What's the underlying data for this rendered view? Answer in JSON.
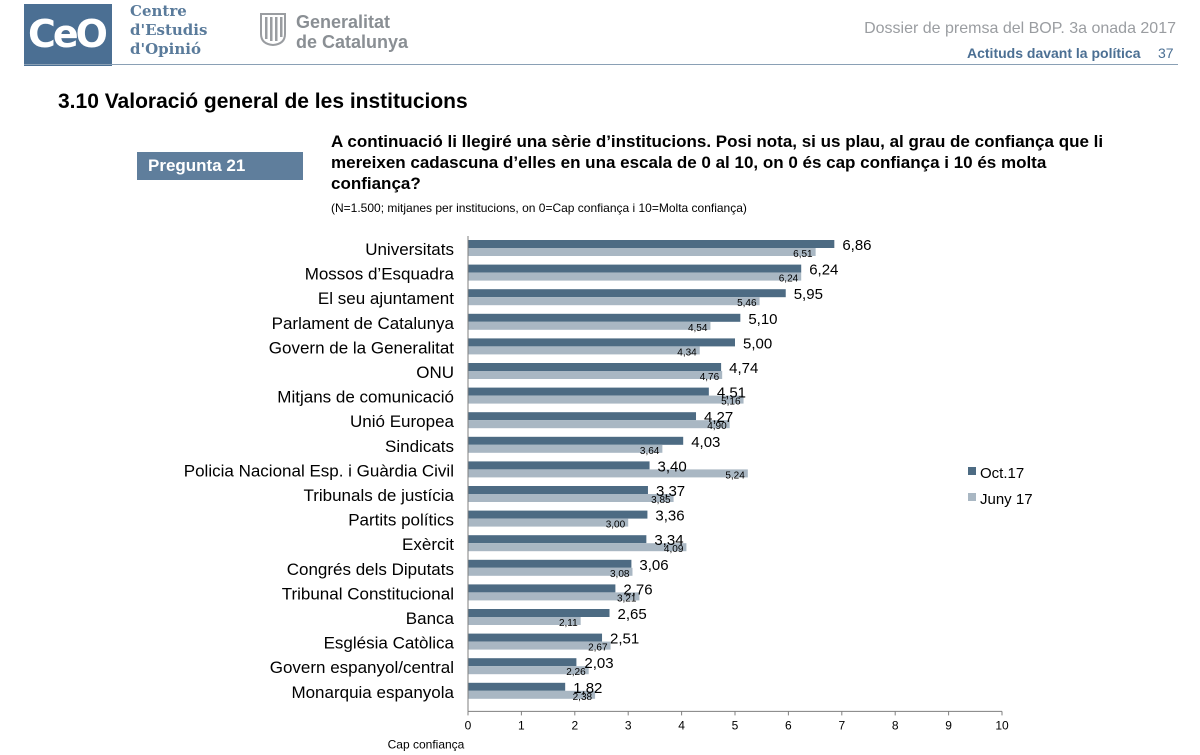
{
  "header": {
    "ceo_logo": "CeO",
    "ceo_name_lines": [
      "Centre",
      "d'Estudis",
      "d'Opinió"
    ],
    "gen_name_lines": [
      "Generalitat",
      "de Catalunya"
    ],
    "dossier": "Dossier de premsa del BOP. 3a onada 2017",
    "section": "Actituds davant la política",
    "page_number": "37"
  },
  "section_title": "3.10 Valoració general de les institucions",
  "pregunta_label": "Pregunta 21",
  "question_text": "A continuació li llegiré una sèrie d’institucions. Posi nota, si us plau, al grau de confiança que li mereixen cadascuna d’elles en una escala de 0 al 10, on 0 és cap confiança  i 10 és molta confiança?",
  "note": "(N=1.500; mitjanes per institucions, on 0=Cap confiança i 10=Molta confiança)",
  "colors": {
    "oct": "#4d6b83",
    "june": "#a9b7c3",
    "brand": "#4b6f93"
  },
  "chart_data": {
    "type": "bar",
    "orientation": "horizontal",
    "categories": [
      "Universitats",
      "Mossos d’Esquadra",
      "El seu ajuntament",
      "Parlament de Catalunya",
      "Govern de la Generalitat",
      "ONU",
      "Mitjans de comunicació",
      "Unió Europea",
      "Sindicats",
      "Policia Nacional Esp. i Guàrdia Civil",
      "Tribunals de justícia",
      "Partits polítics",
      "Exèrcit",
      "Congrés dels Diputats",
      "Tribunal Constitucional",
      "Banca",
      "Església Catòlica",
      "Govern espanyol/central",
      "Monarquia espanyola"
    ],
    "series": [
      {
        "name": "Oct.17",
        "values": [
          6.86,
          6.24,
          5.95,
          5.1,
          5.0,
          4.74,
          4.51,
          4.27,
          4.03,
          3.4,
          3.37,
          3.36,
          3.34,
          3.06,
          2.76,
          2.65,
          2.51,
          2.03,
          1.82
        ],
        "labels": [
          "6,86",
          "6,24",
          "5,95",
          "5,10",
          "5,00",
          "4,74",
          "4,51",
          "4,27",
          "4,03",
          "3,40",
          "3,37",
          "3,36",
          "3,34",
          "3,06",
          "2,76",
          "2,65",
          "2,51",
          "2,03",
          "1,82"
        ]
      },
      {
        "name": "Juny 17",
        "values": [
          6.51,
          6.24,
          5.46,
          4.54,
          4.34,
          4.76,
          5.16,
          4.9,
          3.64,
          5.24,
          3.85,
          3.0,
          4.09,
          3.08,
          3.21,
          2.11,
          2.67,
          2.26,
          2.38
        ],
        "labels": [
          "6,51",
          "6,24",
          "5,46",
          "4,54",
          "4,34",
          "4,76",
          "5,16",
          "4,90",
          "3,64",
          "5,24",
          "3,85",
          "3,00",
          "4,09",
          "3,08",
          "3,21",
          "2,11",
          "2,67",
          "2,26",
          "2,38"
        ]
      }
    ],
    "xlim": [
      0,
      10
    ],
    "xticks": [
      "0",
      "1",
      "2",
      "3",
      "4",
      "5",
      "6",
      "7",
      "8",
      "9",
      "10"
    ],
    "xlabel_left": "Cap confiança",
    "xlabel_right": "Molta confiança",
    "legend_position": "right",
    "grid": false
  }
}
